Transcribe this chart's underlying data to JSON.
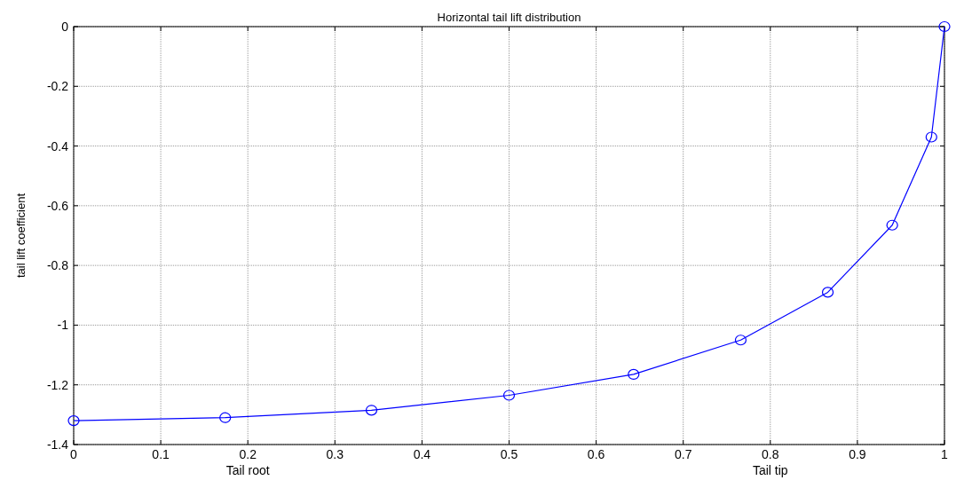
{
  "chart_data": {
    "type": "line",
    "title": "Horizontal tail lift distribution",
    "ylabel": "tail lift coefficient",
    "annotations": [
      "Tail root",
      "Tail tip"
    ],
    "x": [
      0,
      0.174,
      0.342,
      0.5,
      0.643,
      0.766,
      0.866,
      0.94,
      0.985,
      1
    ],
    "series": [
      {
        "color": "#0000ff",
        "values": [
          -1.32,
          -1.31,
          -1.285,
          -1.235,
          -1.165,
          -1.05,
          -0.89,
          -0.665,
          -0.37,
          0
        ]
      }
    ],
    "xlim": [
      0,
      1
    ],
    "xticks": [
      0,
      0.1,
      0.2,
      0.3,
      0.4,
      0.5,
      0.6,
      0.7,
      0.8,
      0.9,
      1
    ],
    "ylim": [
      -1.4,
      0
    ],
    "yticks": [
      -1.4,
      -1.2,
      -1,
      -0.8,
      -0.6,
      -0.4,
      -0.2,
      0
    ],
    "grid": true,
    "marker": "circle",
    "line_style": "solid"
  }
}
